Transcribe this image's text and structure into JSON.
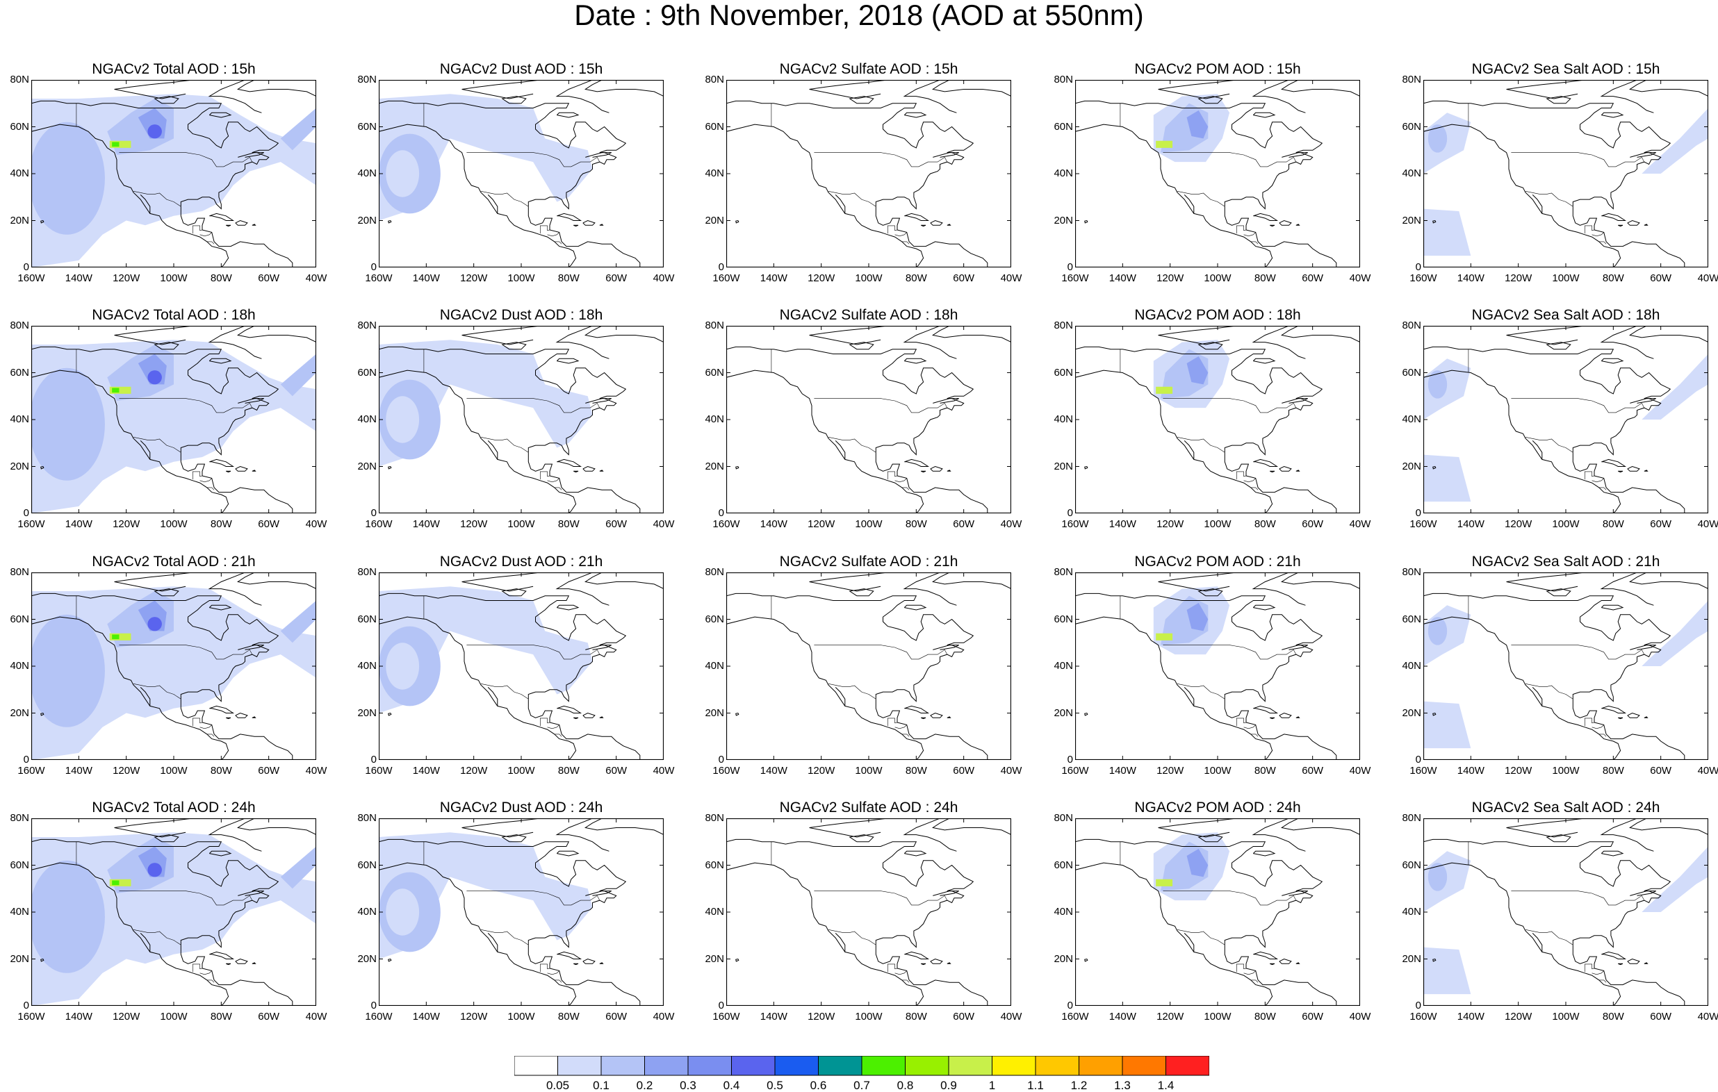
{
  "title": "Date : 9th November, 2018 (AOD at 550nm)",
  "axes": {
    "lon_ticks": [
      "160W",
      "140W",
      "120W",
      "100W",
      "80W",
      "60W",
      "40W"
    ],
    "lat_ticks": [
      "80N",
      "60N",
      "40N",
      "20N",
      "0"
    ],
    "lon_range": [
      -160,
      -40
    ],
    "lat_range": [
      0,
      80
    ]
  },
  "products": [
    {
      "name": "total",
      "color": "#8ea2f2"
    },
    {
      "name": "dust",
      "color": "#b4c4f6"
    },
    {
      "name": "sulfate",
      "color": "#ffffff"
    },
    {
      "name": "pom",
      "color": "#8ea2f2"
    },
    {
      "name": "seasalt",
      "color": "#b4c4f6"
    }
  ],
  "panel_titles": [
    [
      "NGACv2 Total AOD : 15h",
      "NGACv2 Dust AOD : 15h",
      "NGACv2 Sulfate AOD : 15h",
      "NGACv2 POM AOD : 15h",
      "NGACv2 Sea Salt AOD : 15h"
    ],
    [
      "NGACv2 Total AOD : 18h",
      "NGACv2 Dust AOD : 18h",
      "NGACv2 Sulfate AOD : 18h",
      "NGACv2 POM AOD : 18h",
      "NGACv2 Sea Salt AOD : 18h"
    ],
    [
      "NGACv2 Total AOD : 21h",
      "NGACv2 Dust AOD : 21h",
      "NGACv2 Sulfate AOD : 21h",
      "NGACv2 POM AOD : 21h",
      "NGACv2 Sea Salt AOD : 21h"
    ],
    [
      "NGACv2 Total AOD : 24h",
      "NGACv2 Dust AOD : 24h",
      "NGACv2 Sulfate AOD : 24h",
      "NGACv2 POM AOD : 24h",
      "NGACv2 Sea Salt  AOD : 24h"
    ]
  ],
  "colorbar": {
    "labels": [
      "0.05",
      "0.1",
      "0.2",
      "0.3",
      "0.4",
      "0.5",
      "0.6",
      "0.7",
      "0.8",
      "0.9",
      "1",
      "1.1",
      "1.2",
      "1.3",
      "1.4"
    ],
    "colors": [
      "#ffffff",
      "#d2dcfa",
      "#b4c4f6",
      "#8ea2f2",
      "#7a8ef0",
      "#5a64ee",
      "#1a5cf0",
      "#009494",
      "#4cf000",
      "#98f000",
      "#c8f04a",
      "#fff000",
      "#ffc800",
      "#ffa000",
      "#ff7800",
      "#ff2020"
    ]
  },
  "map_colors": {
    "land_line": "#000000",
    "low": "#d2dcfa",
    "mid": "#b4c4f6",
    "high": "#8ea2f2",
    "peak_blue": "#5a64ee",
    "peak_green": "#4cf000",
    "peak_yellow": "#c8f04a"
  }
}
